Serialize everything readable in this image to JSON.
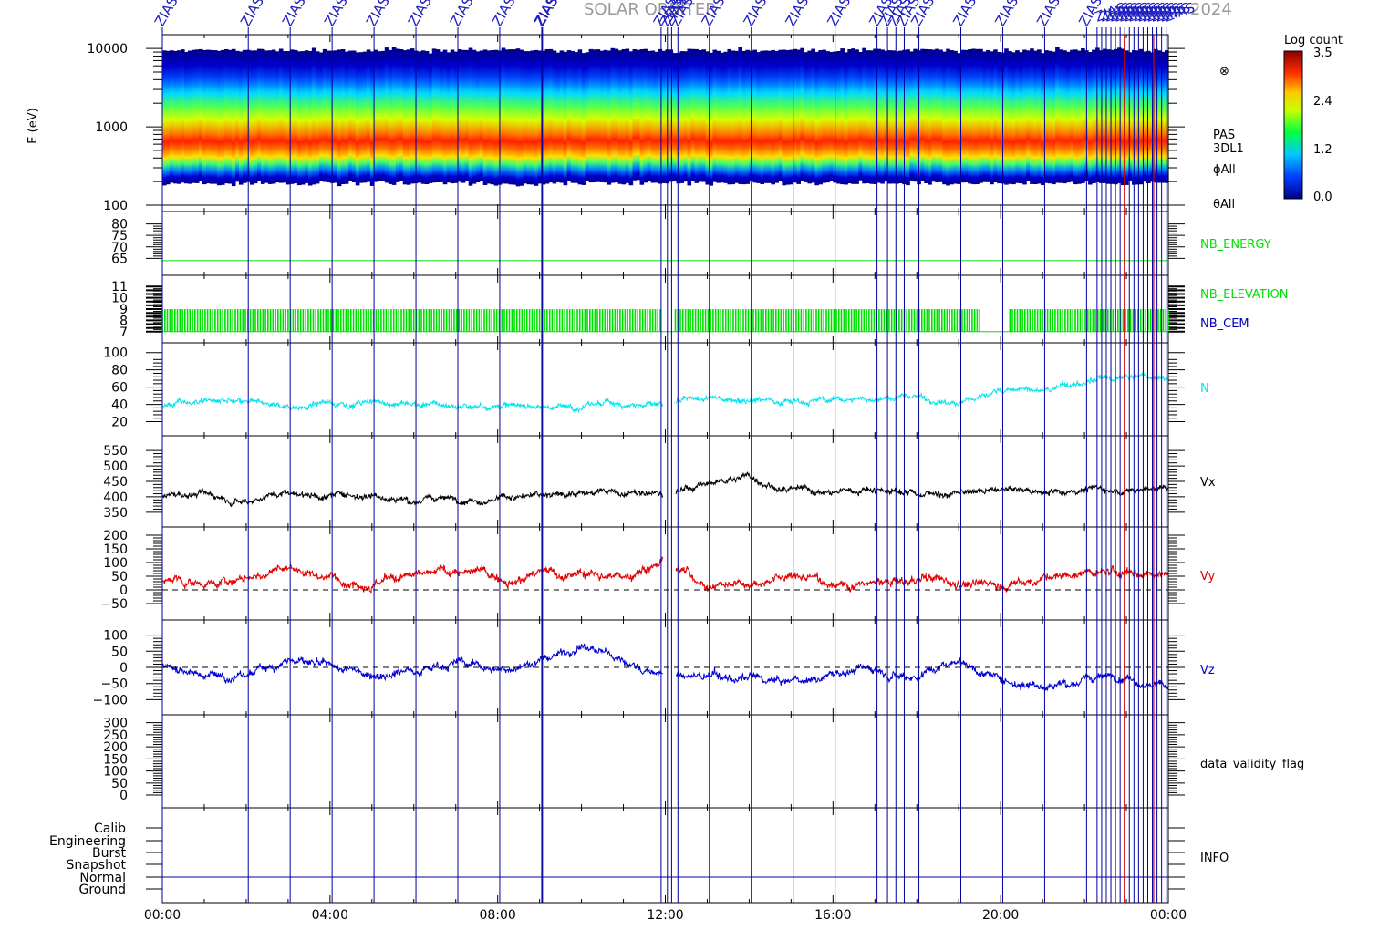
{
  "title": {
    "left": "SOLAR ORBITER",
    "right": "2024"
  },
  "event_label": "ZIAS",
  "colors": {
    "frame": "#000000",
    "event_line": "#0000a0",
    "red_line": "#d00000",
    "nb_green": "#00e000",
    "nb_blue": "#0000c0",
    "density": "#00e5ee",
    "vx": "#000000",
    "vy": "#e00000",
    "vz": "#0000d0",
    "title": "#9a9a9a"
  },
  "time_axis": {
    "ticks": [
      "00:00",
      "04:00",
      "08:00",
      "12:00",
      "16:00",
      "20:00",
      "00:00"
    ],
    "range_hours": [
      0,
      24
    ]
  },
  "event_lines_hours": [
    0.0,
    2.05,
    3.05,
    4.05,
    5.05,
    6.05,
    7.05,
    8.05,
    9.05,
    9.07,
    11.9,
    12.05,
    12.15,
    12.3,
    13.05,
    14.05,
    15.05,
    16.05,
    17.05,
    17.3,
    17.5,
    17.7,
    18.05,
    19.05,
    20.05,
    21.05,
    22.05
  ],
  "dense_event_range_hours": [
    22.3,
    24.0
  ],
  "red_lines_hours": [
    22.95,
    23.65
  ],
  "colorbar": {
    "title": "Log count",
    "ticks": [
      "3.5",
      "2.4",
      "1.2",
      "0.0"
    ],
    "range": [
      0.0,
      3.5
    ]
  },
  "panels": {
    "spectrogram": {
      "ylabel": "E (eV)",
      "ticks": [
        "10000",
        "1000",
        "100"
      ],
      "ylim": [
        100,
        15000
      ],
      "scale": "log",
      "right_labels": [
        "PAS",
        "3DL1",
        "ϕAll",
        "θAll"
      ],
      "symbol": "⊗"
    },
    "nb_energy": {
      "label": "NB_ENERGY",
      "ticks": [
        "80",
        "75",
        "70",
        "65"
      ],
      "ylim": [
        60,
        83
      ],
      "value": 64
    },
    "nb_elev": {
      "labels": [
        "NB_ELEVATION",
        "NB_CEM"
      ],
      "ticks": [
        "11",
        "10",
        "9",
        "8",
        "7"
      ],
      "ylim": [
        6.5,
        11.5
      ],
      "gap_hours": [
        19.55,
        20.2
      ]
    },
    "density": {
      "label": "N",
      "ticks": [
        "100",
        "80",
        "60",
        "40",
        "20"
      ],
      "ylim": [
        10,
        105
      ]
    },
    "vx": {
      "label": "Vx",
      "ticks": [
        "550",
        "500",
        "450",
        "400",
        "350"
      ],
      "ylim": [
        320,
        580
      ]
    },
    "vy": {
      "label": "Vy",
      "ticks": [
        "200",
        "150",
        "100",
        "50",
        "0",
        "−50"
      ],
      "ylim": [
        -90,
        210
      ]
    },
    "vz": {
      "label": "Vz",
      "ticks": [
        "100",
        "50",
        "0",
        "−50",
        "−100"
      ],
      "ylim": [
        -130,
        130
      ]
    },
    "validity": {
      "label": "data_validity_flag",
      "ticks": [
        "300",
        "250",
        "200",
        "150",
        "100",
        "50",
        "0"
      ],
      "ylim": [
        -30,
        310
      ]
    },
    "info": {
      "label": "INFO",
      "ticks": [
        "Calib",
        "Engineering",
        "Burst",
        "Snapshot",
        "Normal",
        "Ground"
      ]
    }
  },
  "chart_data": [
    {
      "type": "heatmap",
      "ylabel": "E (eV)",
      "yscale": "log",
      "ylim": [
        100,
        15000
      ],
      "xlim_hours": [
        0,
        24
      ],
      "peak_energy_ev": 900,
      "energy_band_ev": [
        200,
        9000
      ],
      "colorbar_title": "Log count",
      "colorbar_range": [
        0.0,
        3.5
      ]
    },
    {
      "type": "line",
      "series": [
        {
          "name": "NB_ENERGY",
          "x_hours": [
            0,
            24
          ],
          "values": [
            64,
            64
          ]
        }
      ],
      "ylim": [
        60,
        83
      ]
    },
    {
      "type": "line",
      "series": [
        {
          "name": "NB_ELEVATION",
          "range": [
            7,
            9
          ]
        },
        {
          "name": "NB_CEM",
          "range": [
            7,
            11
          ]
        }
      ],
      "ylim": [
        6.5,
        11.5
      ]
    },
    {
      "type": "line",
      "series": [
        {
          "name": "N",
          "x_hours": [
            0,
            1,
            2,
            3,
            4,
            5,
            6,
            7,
            8,
            9,
            10,
            11,
            12,
            13,
            14,
            15,
            16,
            17,
            18,
            19,
            20,
            21,
            22,
            23,
            24
          ],
          "values": [
            40,
            45,
            40,
            38,
            42,
            42,
            40,
            38,
            40,
            38,
            38,
            42,
            38,
            45,
            48,
            46,
            45,
            47,
            50,
            40,
            58,
            55,
            65,
            70,
            72
          ]
        }
      ],
      "ylim": [
        10,
        105
      ]
    },
    {
      "type": "line",
      "series": [
        {
          "name": "Vx",
          "x_hours": [
            0,
            1,
            2,
            3,
            4,
            5,
            6,
            7,
            8,
            9,
            10,
            11,
            12,
            13,
            14,
            15,
            16,
            17,
            18,
            19,
            20,
            21,
            22,
            23,
            24
          ],
          "values": [
            400,
            410,
            395,
            420,
            405,
            410,
            390,
            395,
            400,
            400,
            420,
            410,
            405,
            440,
            470,
            420,
            410,
            430,
            415,
            410,
            420,
            415,
            430,
            420,
            430
          ]
        }
      ],
      "ylim": [
        320,
        580
      ]
    },
    {
      "type": "line",
      "series": [
        {
          "name": "Vy",
          "x_hours": [
            0,
            1,
            2,
            3,
            4,
            5,
            6,
            7,
            8,
            9,
            10,
            11,
            12,
            13,
            14,
            15,
            16,
            17,
            18,
            19,
            20,
            21,
            22,
            23,
            24
          ],
          "values": [
            30,
            25,
            40,
            80,
            50,
            40,
            40,
            70,
            50,
            60,
            60,
            50,
            120,
            20,
            40,
            50,
            30,
            20,
            30,
            30,
            20,
            40,
            60,
            60,
            70
          ]
        }
      ],
      "ylim": [
        -90,
        210
      ]
    },
    {
      "type": "line",
      "series": [
        {
          "name": "Vz",
          "x_hours": [
            0,
            1,
            2,
            3,
            4,
            5,
            6,
            7,
            8,
            9,
            10,
            11,
            12,
            13,
            14,
            15,
            16,
            17,
            18,
            19,
            20,
            21,
            22,
            23,
            24
          ],
          "values": [
            10,
            -20,
            -30,
            30,
            -10,
            -20,
            0,
            20,
            -10,
            20,
            70,
            20,
            -30,
            -30,
            -40,
            -50,
            -20,
            0,
            -20,
            30,
            -40,
            -50,
            -40,
            -20,
            -60
          ]
        }
      ],
      "ylim": [
        -130,
        130
      ]
    }
  ]
}
